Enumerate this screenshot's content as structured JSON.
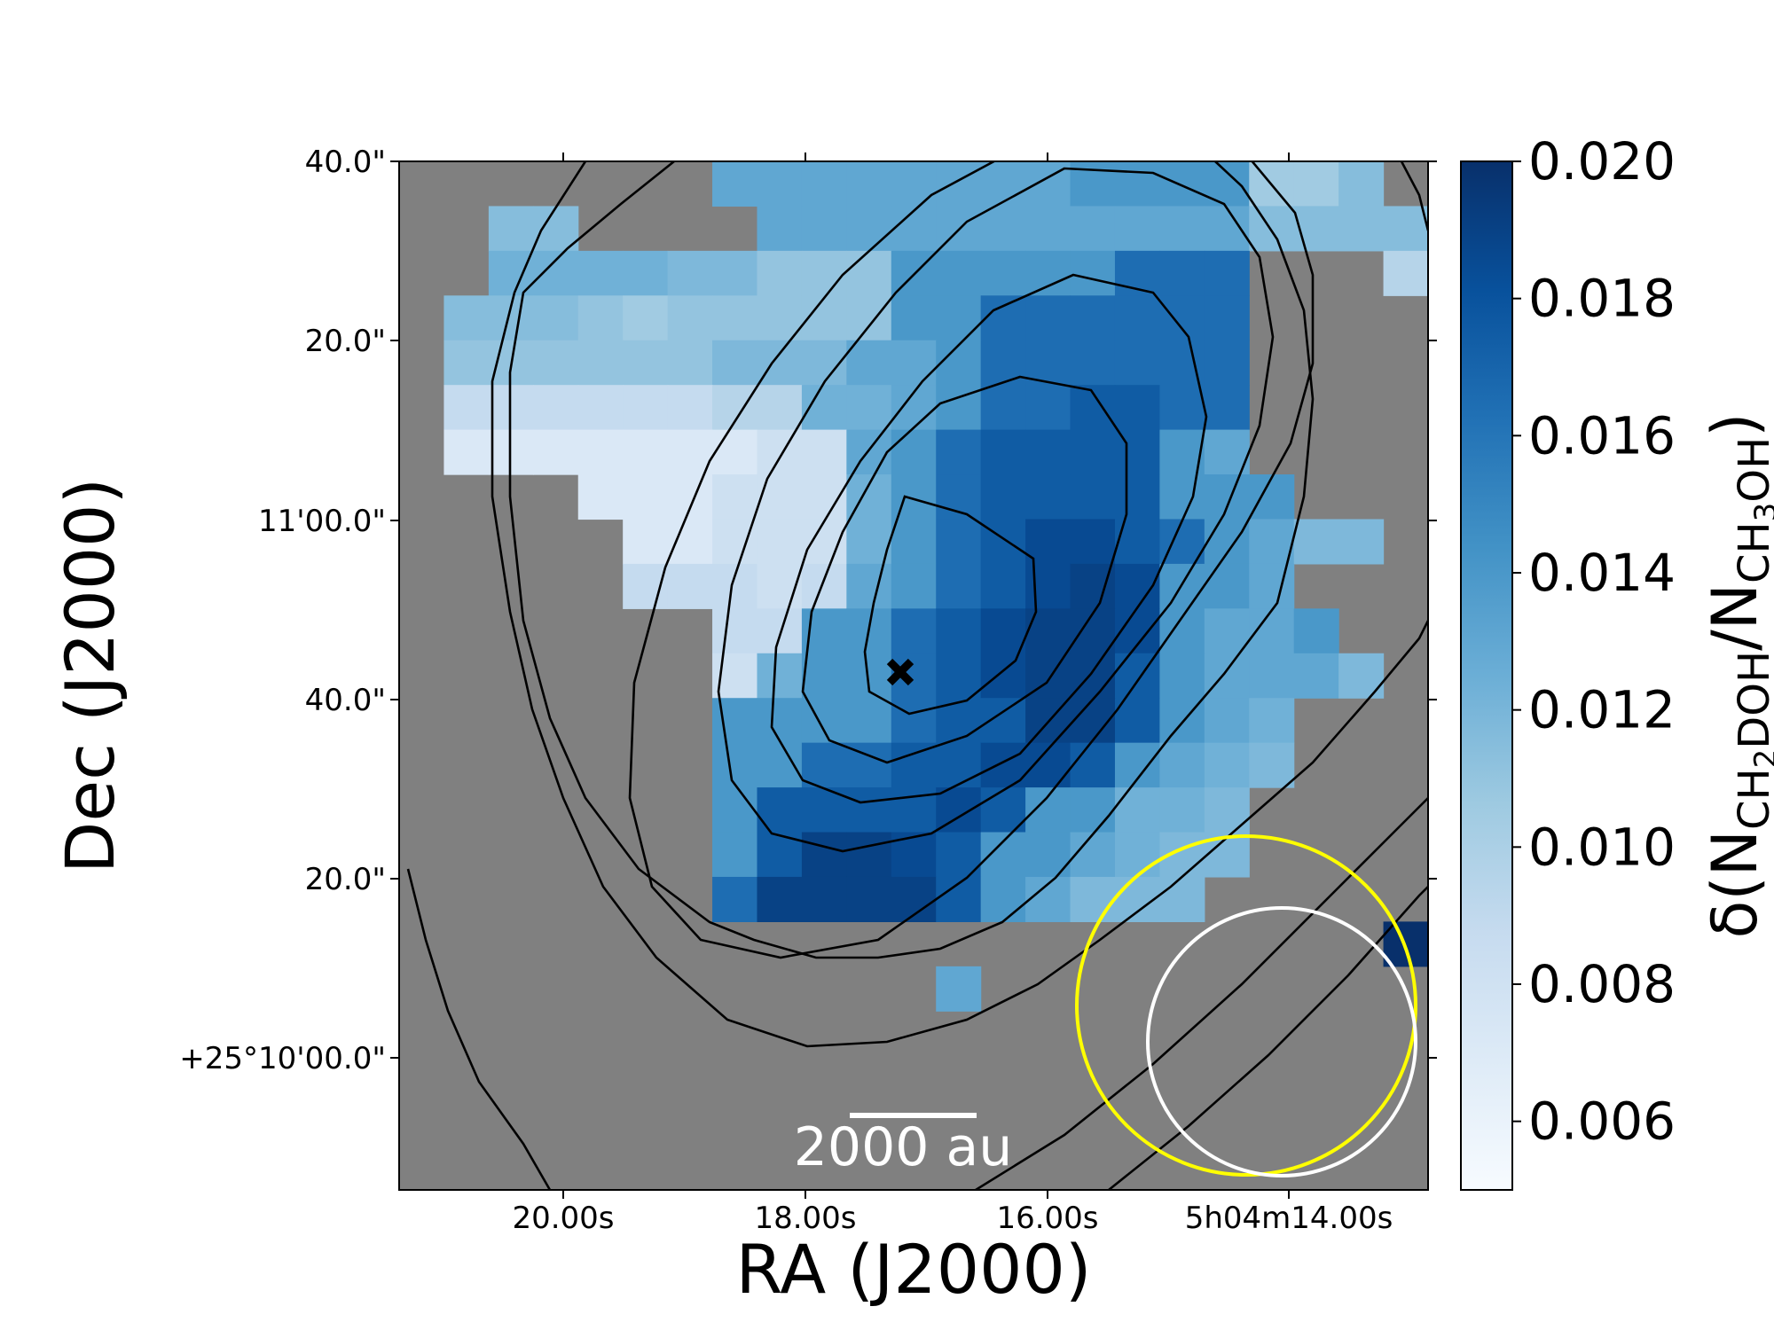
{
  "chart_data": {
    "type": "heatmap",
    "xlabel": "RA (J2000)",
    "ylabel": "Dec (J2000)",
    "x_ticks": [
      "20.00s",
      "18.00s",
      "16.00s",
      "5h04m14.00s"
    ],
    "y_ticks": [
      "40.0\"",
      "20.0\"",
      "11'00.0\"",
      "40.0\"",
      "20.0\"",
      "+25°10'00.0\""
    ],
    "colorbar": {
      "label_parts": [
        "δ(N",
        "CH",
        "2",
        "DOH",
        "/N",
        "CH",
        "3",
        "OH",
        ")"
      ],
      "range": [
        0.005,
        0.02
      ],
      "ticks": [
        "0.006",
        "0.008",
        "0.010",
        "0.012",
        "0.014",
        "0.016",
        "0.018",
        "0.020"
      ],
      "tick_values": [
        0.006,
        0.008,
        0.01,
        0.012,
        0.014,
        0.016,
        0.018,
        0.02
      ],
      "colormap": "Blues"
    },
    "scale_bar": "2000 au",
    "marker": "peak position (x)",
    "beams": [
      {
        "name": "larger beam",
        "color": "#ffff00"
      },
      {
        "name": "smaller beam",
        "color": "#ffffff"
      }
    ],
    "masked_color": "#808080",
    "contours": "black elliptical contours of column density",
    "grid_cols": 23,
    "grid_rows": 23,
    "pixel_values": [
      "0000000IIIIIIIIHHHHMMN0",
      "00NN0000IIIIIIIIIIINNNN",
      "00JJJJKKLLLHHHHHEEE000P",
      "0NNNLMLLLLLHHEEEEEE0000",
      "0LLLLLLKKKIIHEEEEEE0000",
      "0QQQQQQPPJJIHEEDDEE0000",
      "0SSSSSSSRRIHEDDDDHI0000",
      "0000SSSRRRJHEDDDDHHH000",
      "00000SSRRRJHEDCCDEHIKK0",
      "00000QQQRQIHEDCBCHHI000",
      "0000000QQHHEDCBBCHIIH00",
      "0000000RJHHEDCBBDHIIIK0",
      "0000000HHHHEDDBBDHIJ000",
      "0000000HHEEDDCCDHIJK000",
      "0000000HDDDDCDHHJJK0000",
      "0000000HDBBCDHHIJKK0000",
      "0000000EBBBBDHIKKK00000",
      "0000000000000000000000U",
      "000000000000I0000000000",
      "00000000000000000000000",
      "00000000000000000000000",
      "00000000000000000000000",
      "00000000000000000000000"
    ],
    "pixel_key": {
      "0": "masked",
      "A": 0.02,
      "B": 0.019,
      "C": 0.0185,
      "D": 0.0175,
      "E": 0.0165,
      "H": 0.014,
      "I": 0.013,
      "J": 0.0123,
      "K": 0.0118,
      "L": 0.011,
      "M": 0.0105,
      "N": 0.0115,
      "P": 0.0095,
      "Q": 0.0088,
      "R": 0.0082,
      "S": 0.0072,
      "U": 0.02
    }
  }
}
